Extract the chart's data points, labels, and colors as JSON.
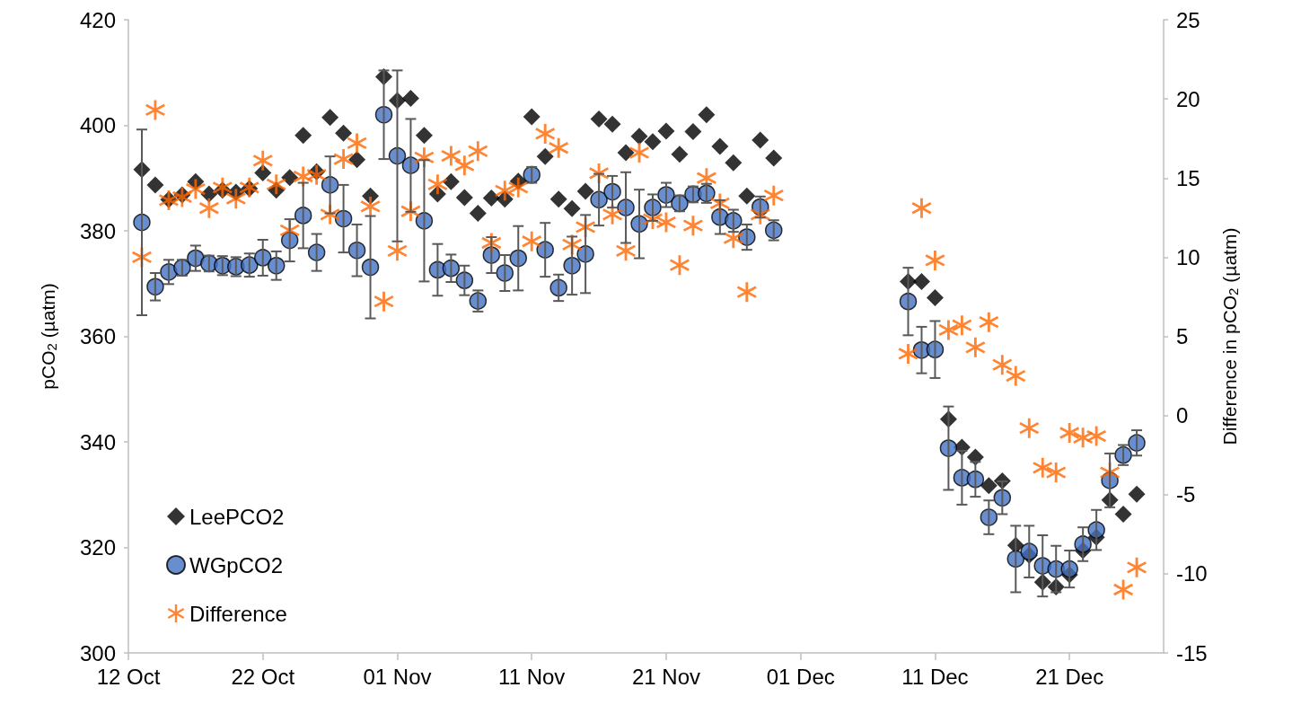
{
  "chart_data": {
    "type": "scatter",
    "x": [
      "--10-13",
      "--10-14",
      "--10-15",
      "--10-16",
      "--10-17",
      "--10-18",
      "--10-19",
      "--10-20",
      "--10-21",
      "--10-22",
      "--10-23",
      "--10-24",
      "--10-25",
      "--10-26",
      "--10-27",
      "--10-28",
      "--10-29",
      "--10-30",
      "--10-31",
      "--11-01",
      "--11-02",
      "--11-03",
      "--11-04",
      "--11-05",
      "--11-06",
      "--11-07",
      "--11-08",
      "--11-09",
      "--11-10",
      "--11-11",
      "--11-12",
      "--11-13",
      "--11-14",
      "--11-15",
      "--11-16",
      "--11-17",
      "--11-18",
      "--11-19",
      "--11-20",
      "--11-21",
      "--11-22",
      "--11-23",
      "--11-24",
      "--11-25",
      "--11-26",
      "--11-27",
      "--11-28",
      "--11-29",
      "--12-09",
      "--12-10",
      "--12-11",
      "--12-12",
      "--12-13",
      "--12-14",
      "--12-15",
      "--12-16",
      "--12-17",
      "--12-18",
      "--12-19",
      "--12-20",
      "--12-21",
      "--12-22",
      "--12-23",
      "--12-24",
      "--12-25",
      "--12-26"
    ],
    "series": [
      {
        "name": "LeePCO2",
        "color": "#000000",
        "marker": "diamond",
        "values": [
          391.6,
          388.7,
          385.9,
          386.8,
          389.3,
          387.0,
          387.7,
          387.3,
          388.0,
          391.0,
          387.7,
          390.1,
          398.1,
          391.2,
          401.5,
          398.5,
          393.5,
          386.6,
          409.2,
          404.7,
          405.1,
          398.1,
          387.0,
          389.3,
          386.3,
          383.3,
          386.2,
          386.0,
          389.4,
          401.6,
          394.1,
          386.0,
          384.2,
          387.5,
          401.2,
          400.2,
          394.8,
          397.9,
          396.9,
          398.9,
          394.5,
          398.8,
          402.0,
          396.0,
          392.9,
          386.6,
          397.2,
          393.8,
          370.4,
          370.4,
          367.3,
          344.3,
          339.0,
          337.1,
          331.7,
          332.6,
          320.4,
          318.5,
          313.4,
          312.5,
          314.8,
          319.4,
          321.9,
          329.0,
          326.3,
          330.1
        ]
      },
      {
        "name": "WGpCO2",
        "color": "#4472c4",
        "marker": "circle",
        "values": [
          381.6,
          369.4,
          372.2,
          373.0,
          374.8,
          373.8,
          373.4,
          373.2,
          373.5,
          374.9,
          373.4,
          378.2,
          382.9,
          375.9,
          388.7,
          382.3,
          376.3,
          373.1,
          402.0,
          394.2,
          392.4,
          381.9,
          372.6,
          372.9,
          370.6,
          366.7,
          375.4,
          372.0,
          374.8,
          390.6,
          376.4,
          369.2,
          373.4,
          375.6,
          385.9,
          387.4,
          384.4,
          381.3,
          384.4,
          386.8,
          385.2,
          386.9,
          387.1,
          382.6,
          381.9,
          378.8,
          384.5,
          380.1,
          366.6,
          357.4,
          357.5,
          338.8,
          333.2,
          332.9,
          325.7,
          329.4,
          317.8,
          319.2,
          316.5,
          315.9,
          315.9,
          320.6,
          323.3,
          332.7,
          337.5,
          339.8
        ],
        "errors": [
          17.6,
          2.6,
          2.3,
          1.5,
          2.4,
          1.5,
          1.8,
          1.8,
          2.2,
          3.4,
          2.7,
          4.0,
          6.2,
          3.5,
          5.4,
          6.4,
          4.9,
          9.7,
          8.4,
          16.2,
          8.8,
          11.5,
          4.9,
          2.6,
          2.8,
          2.0,
          3.4,
          3.4,
          6.1,
          1.5,
          5.1,
          2.5,
          5.5,
          7.4,
          4.9,
          3.0,
          6.7,
          6.5,
          2.5,
          2.3,
          1.5,
          1.5,
          1.8,
          3.2,
          2.1,
          2.4,
          2.0,
          1.9,
          6.4,
          4.4,
          5.4,
          7.9,
          5.1,
          3.3,
          3.2,
          3.1,
          6.3,
          4.9,
          5.8,
          4.4,
          3.5,
          3.2,
          3.8,
          5.1,
          1.9,
          2.4
        ]
      },
      {
        "name": "Difference",
        "color": "#ff6600",
        "marker": "star",
        "axis": "y2",
        "values": [
          10.0,
          19.3,
          13.6,
          13.8,
          14.3,
          13.1,
          14.4,
          13.7,
          14.4,
          16.1,
          14.6,
          11.7,
          15.1,
          15.2,
          12.7,
          16.2,
          17.2,
          13.2,
          7.2,
          10.4,
          12.9,
          16.3,
          14.6,
          16.4,
          15.8,
          16.7,
          10.9,
          14.2,
          14.4,
          11.0,
          17.8,
          16.9,
          10.8,
          11.9,
          15.3,
          12.7,
          10.4,
          16.6,
          12.4,
          12.2,
          9.5,
          12.0,
          15.0,
          13.4,
          11.2,
          7.8,
          12.7,
          13.9,
          3.9,
          13.1,
          9.8,
          5.4,
          5.7,
          4.3,
          5.9,
          3.2,
          2.5,
          -0.8,
          -3.3,
          -3.6,
          -1.1,
          -1.4,
          -1.3,
          -3.6,
          -11.0,
          -9.6
        ]
      }
    ],
    "ylabel": "pCO$_{2}$ (µatm)",
    "y2label": "Difference in pCO$_{2}$ (µatm)",
    "xlim": [
      "--10-12",
      "--12-28"
    ],
    "xticks": [
      {
        "value": "--10-12",
        "label": "12 Oct"
      },
      {
        "value": "--10-22",
        "label": "22 Oct"
      },
      {
        "value": "--11-01",
        "label": "01 Nov"
      },
      {
        "value": "--11-11",
        "label": "11 Nov"
      },
      {
        "value": "--11-21",
        "label": "21 Nov"
      },
      {
        "value": "--12-01",
        "label": "01 Dec"
      },
      {
        "value": "--12-11",
        "label": "11 Dec"
      },
      {
        "value": "--12-21",
        "label": "21 Dec"
      }
    ],
    "ylim": [
      300,
      420
    ],
    "yticks": [
      300,
      320,
      340,
      360,
      380,
      400,
      420
    ],
    "y2lim": [
      -15,
      25
    ],
    "y2ticks": [
      -15,
      -10,
      -5,
      0,
      5,
      10,
      15,
      20,
      25
    ],
    "legend": "bottom left"
  }
}
